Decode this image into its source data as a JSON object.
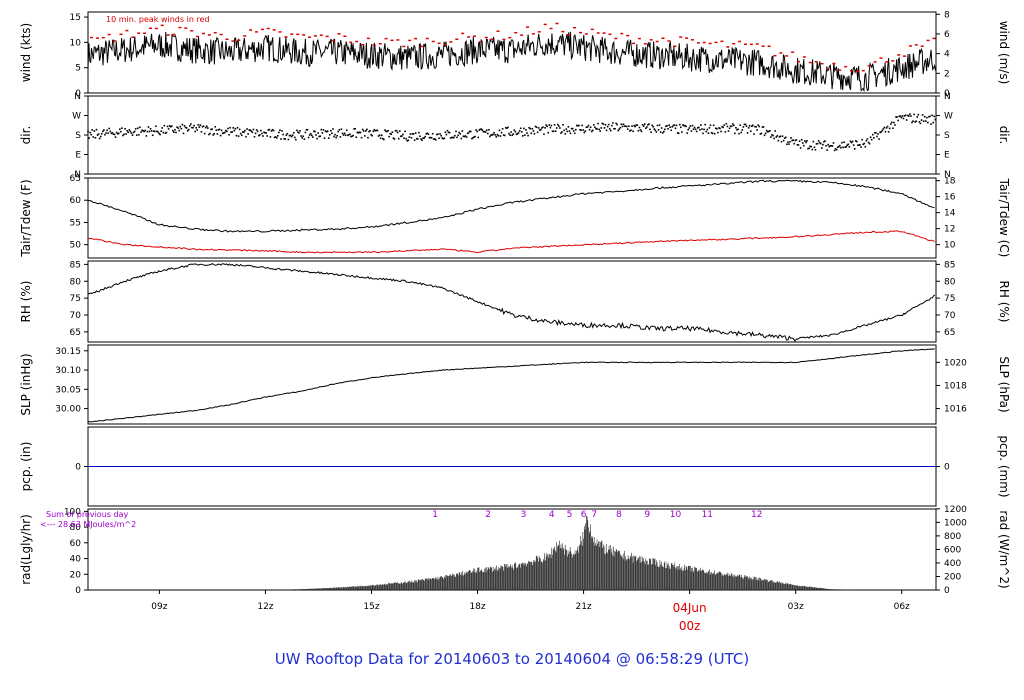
{
  "footer": {
    "title": "UW Rooftop Data for 20140603  to  20140604 @ 06:58:29  (UTC)"
  },
  "colors": {
    "primary": "#000000",
    "peak": "#dd0000",
    "dew": "#dd0000",
    "pcp": "#0000cc",
    "rad_label": "#9900cc",
    "date_label": "#dd0000",
    "footer": "#2030d0"
  },
  "x_axis": {
    "ticks": [
      "09z",
      "12z",
      "15z",
      "18z",
      "21z",
      "00z",
      "03z",
      "06z"
    ],
    "tick_hours": [
      9,
      12,
      15,
      18,
      21,
      24,
      27,
      30
    ],
    "range_hours": [
      6.98,
      30.97
    ],
    "date_label": "04Jun",
    "date_hour_label": "00z"
  },
  "chart_data": [
    {
      "type": "line",
      "name": "wind",
      "ylabel": "wind (kts)",
      "ylabel_right": "wind (m/s)",
      "ylim": [
        0,
        16
      ],
      "yticks": [
        "0",
        "5",
        "10",
        "15"
      ],
      "ytick_values": [
        0,
        5,
        10,
        15
      ],
      "yticks_right": [
        "0",
        "2",
        "4",
        "6",
        "8"
      ],
      "ytick_right_values": [
        0,
        3.89,
        7.78,
        11.66,
        15.55
      ],
      "annotation": "10 min. peak winds in red",
      "x": [
        7,
        8,
        9,
        10,
        11,
        12,
        13,
        14,
        15,
        16,
        17,
        18,
        19,
        20,
        21,
        22,
        23,
        24,
        25,
        26,
        27,
        28,
        29,
        30,
        31
      ],
      "series": [
        {
          "values": [
            7.5,
            8.5,
            9.5,
            8.5,
            8,
            9,
            8,
            8,
            7.5,
            7,
            7.5,
            8.5,
            8.5,
            10,
            9,
            8,
            7.5,
            7,
            6.5,
            6,
            4.5,
            3.5,
            3,
            5,
            7
          ]
        },
        {
          "values": [
            10,
            11.5,
            12.5,
            12,
            11,
            12,
            11,
            11,
            10,
            10,
            10.5,
            11,
            11.5,
            13,
            12,
            11,
            10.5,
            10,
            9.5,
            9,
            7,
            5.5,
            5,
            8,
            10
          ]
        }
      ]
    },
    {
      "type": "scatter",
      "name": "dir",
      "ylabel": "dir.",
      "ylabel_right": "dir.",
      "yticks": [
        "N",
        "E",
        "S",
        "W",
        "N"
      ],
      "ylim": [
        0,
        360
      ],
      "x": [
        7,
        8,
        9,
        10,
        11,
        12,
        13,
        14,
        15,
        16,
        17,
        18,
        19,
        20,
        21,
        22,
        23,
        24,
        25,
        26,
        27,
        28,
        29,
        30,
        31
      ],
      "values": [
        180,
        195,
        200,
        210,
        195,
        185,
        180,
        190,
        185,
        175,
        180,
        185,
        195,
        205,
        210,
        215,
        210,
        205,
        210,
        205,
        140,
        130,
        140,
        260,
        250
      ]
    },
    {
      "type": "line",
      "name": "temp",
      "ylabel": "Tair/Tdew (F)",
      "ylabel_right": "Tair/Tdew (C)",
      "ylim": [
        47,
        65
      ],
      "yticks": [
        "50",
        "55",
        "60",
        "65"
      ],
      "ytick_values": [
        50,
        55,
        60,
        65
      ],
      "yticks_right": [
        "10",
        "12",
        "14",
        "16",
        "18"
      ],
      "ytick_right_values": [
        50,
        53.6,
        57.2,
        60.8,
        64.4
      ],
      "x": [
        7,
        8,
        9,
        10,
        11,
        12,
        13,
        14,
        15,
        16,
        17,
        18,
        19,
        20,
        21,
        22,
        23,
        24,
        25,
        26,
        27,
        28,
        29,
        30,
        31
      ],
      "series": [
        {
          "values": [
            60,
            57.5,
            54.5,
            53.5,
            53,
            53,
            53.3,
            53.5,
            54,
            55,
            56,
            58,
            59.5,
            60.5,
            61.5,
            62,
            62.7,
            63.2,
            63.7,
            64.3,
            64.3,
            64,
            63,
            61.5,
            58
          ]
        },
        {
          "values": [
            51.5,
            50,
            49.5,
            49,
            48.8,
            48.6,
            48.3,
            48.3,
            48.3,
            48.6,
            49,
            48.3,
            49.2,
            49.6,
            50,
            50.3,
            50.7,
            51,
            51.2,
            51.5,
            51.8,
            52.3,
            52.8,
            53,
            50.5
          ]
        }
      ]
    },
    {
      "type": "line",
      "name": "rh",
      "ylabel": "RH (%)",
      "ylabel_right": "RH (%)",
      "ylim": [
        62,
        86
      ],
      "yticks": [
        "65",
        "70",
        "75",
        "80",
        "85"
      ],
      "ytick_values": [
        65,
        70,
        75,
        80,
        85
      ],
      "yticks_right": [
        "65",
        "70",
        "75",
        "80",
        "85"
      ],
      "ytick_right_values": [
        65,
        70,
        75,
        80,
        85
      ],
      "x": [
        7,
        8,
        9,
        10,
        11,
        12,
        13,
        14,
        15,
        16,
        17,
        18,
        19,
        20,
        21,
        22,
        23,
        24,
        25,
        26,
        27,
        28,
        29,
        30,
        31
      ],
      "values": [
        76,
        80,
        83,
        85,
        85,
        84,
        83,
        82,
        81,
        80,
        78,
        74,
        70,
        68,
        67,
        67,
        66,
        66,
        65,
        64,
        63,
        64,
        67,
        70,
        76
      ]
    },
    {
      "type": "line",
      "name": "slp",
      "ylabel": "SLP (inHg)",
      "ylabel_right": "SLP (hPa)",
      "ylim": [
        29.96,
        30.165
      ],
      "yticks": [
        "30.00",
        "30.05",
        "30.10",
        "30.15"
      ],
      "ytick_values": [
        30.0,
        30.05,
        30.1,
        30.15
      ],
      "yticks_right": [
        "1016",
        "1018",
        "1020"
      ],
      "ytick_right_values": [
        30.0,
        30.06,
        30.12
      ],
      "x": [
        7,
        8,
        9,
        10,
        11,
        12,
        13,
        14,
        15,
        16,
        17,
        18,
        19,
        20,
        21,
        22,
        23,
        24,
        25,
        26,
        27,
        28,
        29,
        30,
        31
      ],
      "values": [
        29.965,
        29.975,
        29.985,
        29.995,
        30.01,
        30.03,
        30.045,
        30.065,
        30.08,
        30.09,
        30.1,
        30.105,
        30.11,
        30.115,
        30.12,
        30.12,
        30.12,
        30.12,
        30.12,
        30.12,
        30.12,
        30.13,
        30.14,
        30.15,
        30.155
      ]
    },
    {
      "type": "line",
      "name": "pcp",
      "ylabel": "pcp. (in)",
      "ylabel_right": "pcp. (mm)",
      "ylim": [
        -1,
        1
      ],
      "yticks": [
        "0"
      ],
      "ytick_values": [
        0
      ],
      "yticks_right": [
        "0"
      ],
      "ytick_right_values": [
        0
      ],
      "x": [
        7,
        31
      ],
      "values": [
        0,
        0
      ]
    },
    {
      "type": "area",
      "name": "rad",
      "ylabel": "rad(Lgly/hr)",
      "ylabel_right": "rad (W/m^2)",
      "ylim": [
        0,
        103
      ],
      "yticks": [
        "0",
        "20",
        "40",
        "60",
        "80",
        "100"
      ],
      "ytick_values": [
        0,
        20,
        40,
        60,
        80,
        100
      ],
      "yticks_right": [
        "0",
        "200",
        "400",
        "600",
        "800",
        "1000",
        "1200"
      ],
      "ytick_right_values": [
        0,
        17.2,
        34.4,
        51.6,
        68.8,
        86,
        103.2
      ],
      "annotation_line1": "Sum of previous day",
      "annotation_line2": "<--- 28.63 MJoules/m^2",
      "hour_labels": [
        "1",
        "2",
        "3",
        "4",
        "5",
        "6",
        "7",
        "8",
        "9",
        "10",
        "11",
        "12"
      ],
      "hour_label_positions": [
        16.8,
        18.3,
        19.3,
        20.1,
        20.6,
        21.0,
        21.3,
        22.0,
        22.8,
        23.6,
        24.5,
        25.9
      ],
      "x": [
        12,
        13,
        14,
        15,
        16,
        17,
        18,
        19,
        19.5,
        20,
        20.3,
        20.5,
        20.8,
        21,
        21.1,
        21.3,
        21.5,
        22,
        22.5,
        23,
        24,
        25,
        26,
        27,
        28,
        29
      ],
      "values": [
        0,
        1,
        3,
        6,
        10,
        16,
        25,
        30,
        36,
        42,
        60,
        50,
        45,
        70,
        92,
        65,
        55,
        45,
        40,
        35,
        27,
        20,
        14,
        6,
        1,
        0
      ]
    }
  ]
}
